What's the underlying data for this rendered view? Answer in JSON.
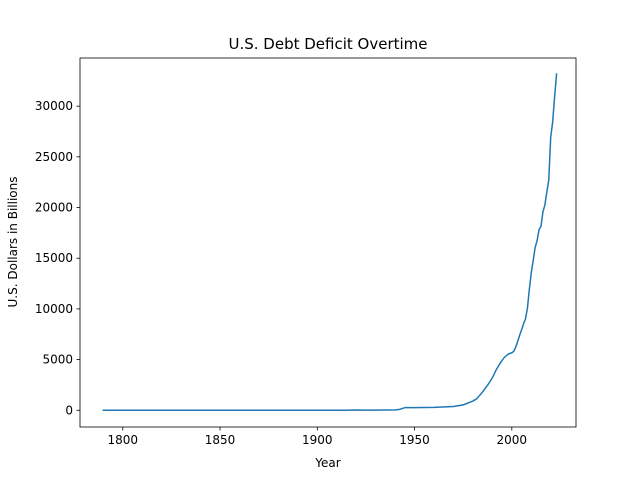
{
  "chart_data": {
    "type": "line",
    "title": "U.S. Debt Deficit Overtime",
    "xlabel": "Year",
    "ylabel": "U.S. Dollars in Billions",
    "xlim": [
      1778,
      2033
    ],
    "ylim": [
      -1650,
      34750
    ],
    "xticks": [
      1800,
      1850,
      1900,
      1950,
      2000
    ],
    "yticks": [
      0,
      5000,
      10000,
      15000,
      20000,
      25000,
      30000
    ],
    "grid": false,
    "line_color": "#1f77b4",
    "series": [
      {
        "x": [
          1790,
          1800,
          1820,
          1840,
          1860,
          1880,
          1900,
          1915,
          1917,
          1919,
          1925,
          1930,
          1935,
          1940,
          1942,
          1945,
          1950,
          1960,
          1970,
          1975,
          1980,
          1982,
          1985,
          1988,
          1990,
          1992,
          1994,
          1996,
          1998,
          2000,
          2001,
          2002,
          2003,
          2004,
          2005,
          2006,
          2007,
          2008,
          2009,
          2010,
          2011,
          2012,
          2013,
          2014,
          2015,
          2016,
          2017,
          2018,
          2019,
          2020,
          2021,
          2022,
          2023
        ],
        "y": [
          0,
          0,
          0,
          0,
          0,
          0,
          0,
          0,
          15,
          25,
          20,
          16,
          28,
          43,
          72,
          258,
          257,
          286,
          371,
          533,
          908,
          1142,
          1817,
          2602,
          3206,
          4002,
          4643,
          5181,
          5526,
          5674,
          5807,
          6228,
          6783,
          7379,
          7933,
          8507,
          9008,
          10025,
          11910,
          13562,
          14790,
          16066,
          16738,
          17824,
          18151,
          19573,
          20245,
          21516,
          22719,
          26945,
          28429,
          30928,
          33167
        ]
      }
    ]
  }
}
